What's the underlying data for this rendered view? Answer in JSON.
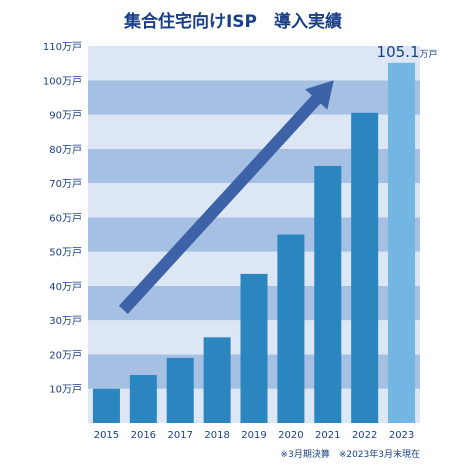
{
  "chart_data": {
    "type": "bar",
    "title": "集合住宅向けISP　導入実績",
    "categories": [
      "2015",
      "2016",
      "2017",
      "2018",
      "2019",
      "2020",
      "2021",
      "2022",
      "2023"
    ],
    "values": [
      10,
      14,
      19,
      25,
      43.5,
      55,
      75,
      90.5,
      105.1
    ],
    "ylim": [
      0,
      110
    ],
    "yticks": [
      10,
      20,
      30,
      40,
      50,
      60,
      70,
      80,
      90,
      100,
      110
    ],
    "ytick_suffix": "万戸",
    "data_label": {
      "category": "2023",
      "number": "105.1",
      "unit": "万戸"
    },
    "footnote": "※3月期決算　※2023年3月末現在",
    "grid": "alternating horizontal bands",
    "trend_arrow": {
      "from": {
        "category": "2016",
        "value": 33
      },
      "to": {
        "category": "2021",
        "value": 100
      }
    },
    "colors": {
      "bar": "#2b86c0",
      "bar_highlight": "#74b6e2",
      "band_light": "#dce6f5",
      "band_dark": "#a5c0e2",
      "arrow": "#3d62a8",
      "text": "#1a3f86"
    }
  }
}
